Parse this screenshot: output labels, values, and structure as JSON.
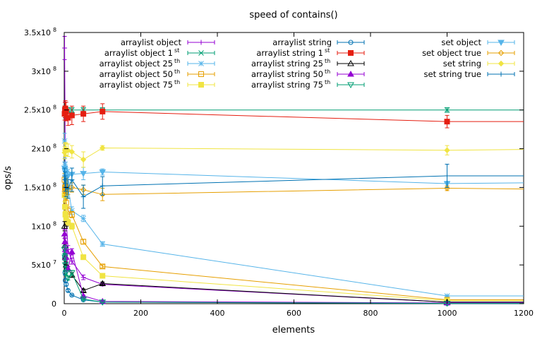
{
  "chart_data": {
    "type": "line",
    "title": "speed of contains()",
    "xlabel": "elements",
    "ylabel": "ops/s",
    "xlim": [
      0,
      1200
    ],
    "ylim": [
      0,
      350000000
    ],
    "x_ticks": [
      0,
      200,
      400,
      600,
      800,
      1000,
      1200
    ],
    "y_ticks": [
      {
        "value": 0,
        "label": "0",
        "exp": ""
      },
      {
        "value": 50000000,
        "label": "5x10",
        "exp": "7"
      },
      {
        "value": 100000000,
        "label": "1x10",
        "exp": "8"
      },
      {
        "value": 150000000,
        "label": "1.5x10",
        "exp": "8"
      },
      {
        "value": 200000000,
        "label": "2x10",
        "exp": "8"
      },
      {
        "value": 250000000,
        "label": "2.5x10",
        "exp": "8"
      },
      {
        "value": 300000000,
        "label": "3x10",
        "exp": "8"
      },
      {
        "value": 350000000,
        "label": "3.5x10",
        "exp": "8"
      }
    ],
    "grid": false,
    "legend_position": "top",
    "series": [
      {
        "name": "arraylist object",
        "sup": "",
        "color": "#9400d3",
        "marker": "plus",
        "x": [
          1,
          2,
          3,
          5,
          10,
          20,
          50,
          100,
          1000,
          1200
        ],
        "y": [
          330000000,
          250000000,
          150000000,
          110000000,
          70000000,
          55000000,
          34000000,
          25000000,
          2000000,
          2000000
        ],
        "err": [
          15000000,
          10000000,
          10000000,
          8000000,
          5000000,
          4000000,
          3000000,
          2000000,
          500000,
          0
        ]
      },
      {
        "name": "arraylist object 1",
        "sup": "st",
        "color": "#009e73",
        "marker": "x",
        "x": [
          1,
          2,
          3,
          5,
          10,
          20,
          50,
          100,
          1000,
          1200
        ],
        "y": [
          250000000,
          248000000,
          249000000,
          250000000,
          250000000,
          250000000,
          250000000,
          250000000,
          250000000,
          250000000
        ],
        "err": [
          5000000,
          4000000,
          4000000,
          3000000,
          3000000,
          3000000,
          3000000,
          3000000,
          3000000,
          0
        ]
      },
      {
        "name": "arraylist object 25",
        "sup": "th",
        "color": "#56b4e9",
        "marker": "star",
        "x": [
          1,
          2,
          3,
          5,
          10,
          20,
          50,
          100,
          1000,
          1200
        ],
        "y": [
          210000000,
          180000000,
          170000000,
          160000000,
          150000000,
          120000000,
          110000000,
          77000000,
          10000000,
          10000000
        ],
        "err": [
          10000000,
          8000000,
          8000000,
          6000000,
          5000000,
          5000000,
          4000000,
          3000000,
          1000000,
          0
        ]
      },
      {
        "name": "arraylist object 50",
        "sup": "th",
        "color": "#e69f00",
        "marker": "square-open",
        "x": [
          1,
          2,
          3,
          5,
          10,
          20,
          50,
          100,
          1000,
          1200
        ],
        "y": [
          160000000,
          150000000,
          140000000,
          130000000,
          120000000,
          115000000,
          80000000,
          48000000,
          5000000,
          5000000
        ],
        "err": [
          8000000,
          6000000,
          6000000,
          5000000,
          5000000,
          4000000,
          3000000,
          2000000,
          500000,
          0
        ]
      },
      {
        "name": "arraylist object 75",
        "sup": "th",
        "color": "#f0e442",
        "marker": "square-filled",
        "x": [
          1,
          2,
          3,
          5,
          10,
          20,
          50,
          100,
          1000,
          1200
        ],
        "y": [
          140000000,
          125000000,
          115000000,
          110000000,
          105000000,
          100000000,
          60000000,
          36000000,
          4000000,
          4000000
        ],
        "err": [
          8000000,
          6000000,
          5000000,
          5000000,
          4000000,
          4000000,
          3000000,
          2000000,
          500000,
          0
        ]
      },
      {
        "name": "arraylist string",
        "sup": "",
        "color": "#0072b2",
        "marker": "circle-open",
        "x": [
          1,
          2,
          3,
          5,
          10,
          20,
          50,
          100,
          1000,
          1200
        ],
        "y": [
          60000000,
          40000000,
          30000000,
          25000000,
          17000000,
          11000000,
          5000000,
          2000000,
          200000,
          200000
        ],
        "err": [
          4000000,
          3000000,
          2000000,
          2000000,
          1500000,
          1000000,
          500000,
          300000,
          100000,
          0
        ]
      },
      {
        "name": "arraylist string 1",
        "sup": "st",
        "color": "#e51e10",
        "marker": "square-filled",
        "x": [
          1,
          2,
          3,
          5,
          10,
          20,
          50,
          100,
          1000,
          1200
        ],
        "y": [
          245000000,
          250000000,
          252000000,
          248000000,
          240000000,
          243000000,
          245000000,
          248000000,
          235000000,
          235000000
        ],
        "err": [
          8000000,
          10000000,
          10000000,
          12000000,
          10000000,
          12000000,
          10000000,
          10000000,
          8000000,
          0
        ]
      },
      {
        "name": "arraylist string 25",
        "sup": "th",
        "color": "#000000",
        "marker": "triangle-open",
        "x": [
          1,
          2,
          3,
          5,
          10,
          20,
          50,
          100,
          1000,
          1200
        ],
        "y": [
          100000000,
          75000000,
          60000000,
          50000000,
          45000000,
          37000000,
          17000000,
          26000000,
          2000000,
          2000000
        ],
        "err": [
          6000000,
          5000000,
          4000000,
          4000000,
          3000000,
          3000000,
          2000000,
          2000000,
          300000,
          0
        ]
      },
      {
        "name": "arraylist string 50",
        "sup": "th",
        "color": "#9400d3",
        "marker": "triangle-filled",
        "x": [
          1,
          2,
          3,
          5,
          10,
          20,
          50,
          100,
          1000,
          1200
        ],
        "y": [
          90000000,
          80000000,
          70000000,
          60000000,
          45000000,
          67000000,
          10000000,
          3000000,
          1000000,
          1000000
        ],
        "err": [
          6000000,
          5000000,
          4000000,
          4000000,
          3000000,
          4000000,
          1000000,
          500000,
          200000,
          0
        ]
      },
      {
        "name": "arraylist string 75",
        "sup": "th",
        "color": "#009e73",
        "marker": "triangle-down-open",
        "x": [
          1,
          2,
          3,
          5,
          10,
          20,
          50,
          100,
          1000,
          1200
        ],
        "y": [
          70000000,
          60000000,
          50000000,
          40000000,
          33000000,
          40000000,
          6000000,
          2000000,
          500000,
          500000
        ],
        "err": [
          5000000,
          4000000,
          3000000,
          3000000,
          2500000,
          3000000,
          800000,
          300000,
          100000,
          0
        ]
      },
      {
        "name": "set object",
        "sup": "",
        "color": "#56b4e9",
        "marker": "triangle-down-filled",
        "x": [
          1,
          2,
          3,
          5,
          10,
          20,
          50,
          100,
          1000,
          1200
        ],
        "y": [
          175000000,
          172000000,
          170000000,
          168000000,
          165000000,
          167000000,
          168000000,
          170000000,
          155000000,
          156000000
        ],
        "err": [
          8000000,
          8000000,
          8000000,
          8000000,
          8000000,
          8000000,
          8000000,
          4000000,
          3000000,
          0
        ]
      },
      {
        "name": "set object true",
        "sup": "",
        "color": "#e69f00",
        "marker": "diamond-open",
        "x": [
          1,
          2,
          3,
          5,
          10,
          20,
          50,
          100,
          1000,
          1200
        ],
        "y": [
          145000000,
          148000000,
          150000000,
          148000000,
          147000000,
          150000000,
          147000000,
          141000000,
          149000000,
          148000000
        ],
        "err": [
          6000000,
          6000000,
          6000000,
          6000000,
          6000000,
          6000000,
          6000000,
          8000000,
          3000000,
          0
        ]
      },
      {
        "name": "set string",
        "sup": "",
        "color": "#f0e442",
        "marker": "diamond-filled",
        "x": [
          1,
          2,
          3,
          5,
          10,
          20,
          50,
          100,
          1000,
          1200
        ],
        "y": [
          195000000,
          198000000,
          200000000,
          199000000,
          198000000,
          196000000,
          186000000,
          201000000,
          198000000,
          199000000
        ],
        "err": [
          8000000,
          8000000,
          8000000,
          8000000,
          8000000,
          8000000,
          10000000,
          3000000,
          6000000,
          0
        ]
      },
      {
        "name": "set string true",
        "sup": "",
        "color": "#0072b2",
        "marker": "plus",
        "x": [
          1,
          2,
          3,
          5,
          10,
          20,
          50,
          100,
          1000,
          1200
        ],
        "y": [
          165000000,
          160000000,
          155000000,
          150000000,
          148000000,
          160000000,
          138000000,
          152000000,
          165000000,
          165000000
        ],
        "err": [
          10000000,
          10000000,
          10000000,
          12000000,
          12000000,
          15000000,
          15000000,
          12000000,
          15000000,
          0
        ]
      }
    ]
  }
}
